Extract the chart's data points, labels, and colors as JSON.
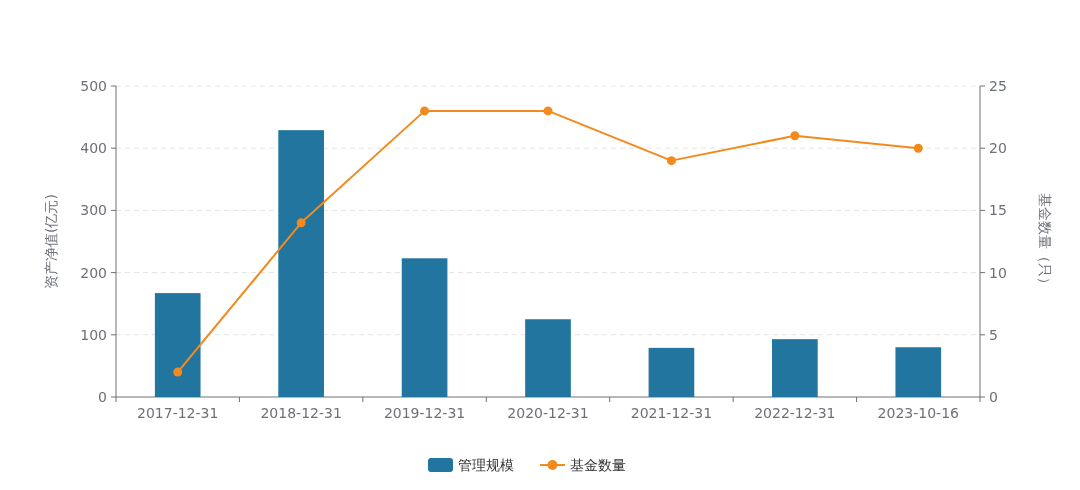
{
  "chart_data": {
    "type": "bar",
    "categories": [
      "2017-12-31",
      "2018-12-31",
      "2019-12-31",
      "2020-12-31",
      "2021-12-31",
      "2022-12-31",
      "2023-10-16"
    ],
    "series": [
      {
        "name": "管理规模",
        "color": "#21759f",
        "values": [
          167,
          429,
          223,
          125,
          79,
          93,
          80
        ]
      },
      {
        "name": "基金数量",
        "type": "line",
        "axis": "y2",
        "color": "#f28a1e",
        "values": [
          2,
          14,
          23,
          23,
          19,
          21,
          20
        ]
      }
    ],
    "ylabel": "资产净值(亿元)",
    "y2label": "基金数量（只）",
    "ylim": [
      0,
      500
    ],
    "yticks": [
      0,
      100,
      200,
      300,
      400,
      500
    ],
    "y2lim": [
      0,
      25
    ],
    "y2ticks": [
      0,
      5,
      10,
      15,
      20,
      25
    ],
    "grid": "y",
    "legend": "bottom",
    "marker": "circle",
    "line_style": "solid"
  }
}
